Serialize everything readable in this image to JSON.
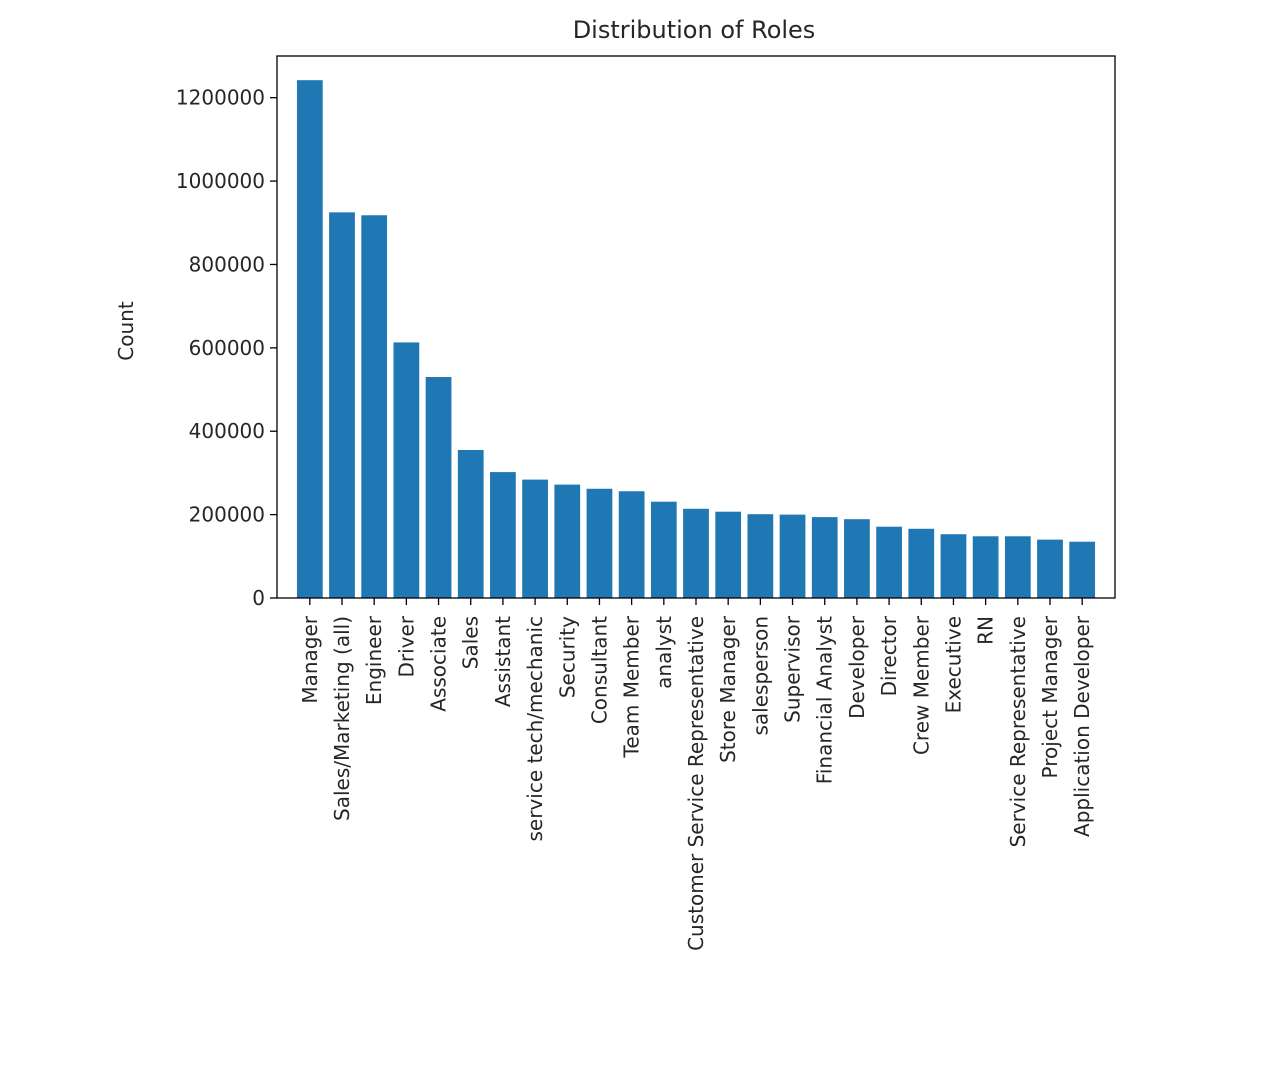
{
  "chart_data": {
    "type": "bar",
    "title": "Distribution of Roles",
    "xlabel": "",
    "ylabel": "Count",
    "ylim": [
      0,
      1300000
    ],
    "yticks": [
      0,
      200000,
      400000,
      600000,
      800000,
      1000000,
      1200000
    ],
    "ytick_labels": [
      "0",
      "200000",
      "400000",
      "600000",
      "800000",
      "1000000",
      "1200000"
    ],
    "grid": false,
    "bar_color": "#1f77b4",
    "categories": [
      "Manager",
      "Sales/Marketing (all)",
      "Engineer",
      "Driver",
      "Associate",
      "Sales",
      "Assistant",
      "service tech/mechanic",
      "Security",
      "Consultant",
      "Team Member",
      "analyst",
      "Customer Service Representative",
      "Store Manager",
      "salesperson",
      "Supervisor",
      "Financial Analyst",
      "Developer",
      "Director",
      "Crew Member",
      "Executive",
      "RN",
      "Service Representative",
      "Project Manager",
      "Application Developer"
    ],
    "values": [
      1242000,
      925000,
      918000,
      613000,
      530000,
      355000,
      302000,
      284000,
      272000,
      262000,
      256000,
      231000,
      214000,
      207000,
      201000,
      200000,
      194000,
      189000,
      171000,
      166000,
      153000,
      148000,
      148000,
      140000,
      135000
    ]
  }
}
